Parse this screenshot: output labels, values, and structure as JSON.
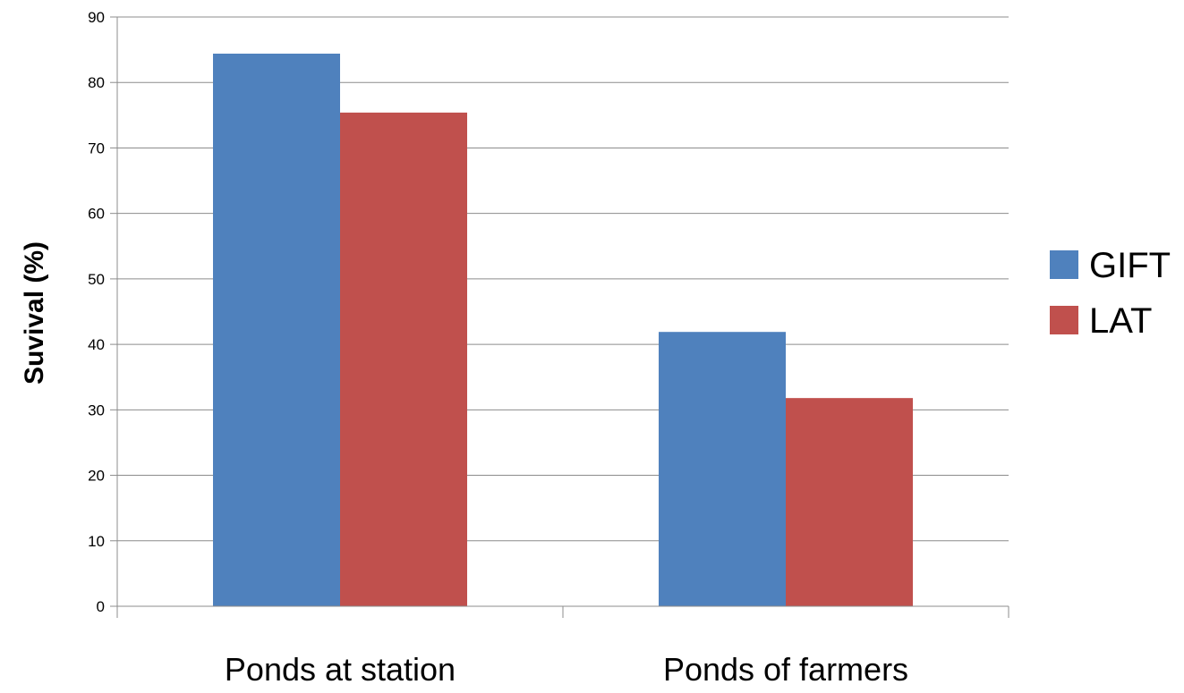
{
  "chart_data": {
    "type": "bar",
    "categories": [
      "Ponds at station",
      "Ponds of farmers"
    ],
    "series": [
      {
        "name": "GIFT",
        "values": [
          84.4,
          41.9
        ],
        "color": "#4F81BD"
      },
      {
        "name": "LAT",
        "values": [
          75.4,
          31.8
        ],
        "color": "#C0504D"
      }
    ],
    "title": "",
    "xlabel": "",
    "ylabel": "Suvival (%)",
    "ylim": [
      0,
      90
    ],
    "yticks": [
      0,
      10,
      20,
      30,
      40,
      50,
      60,
      70,
      80,
      90
    ],
    "grid": true,
    "legend_position": "right"
  }
}
